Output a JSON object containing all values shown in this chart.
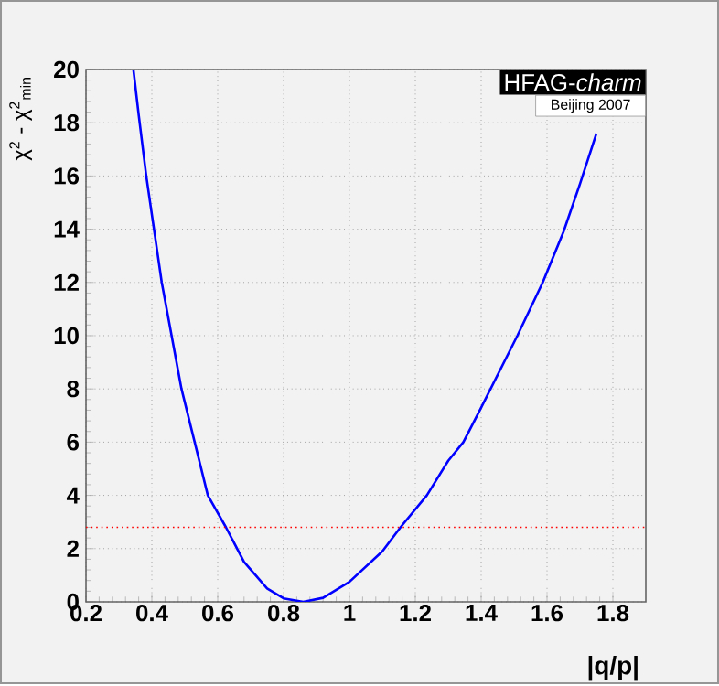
{
  "chart_data": {
    "type": "line",
    "xlabel": "|q/p|",
    "ylabel": "χ$^{2}$ - χ$^{2}$$_{min}$",
    "annotations": [
      "HFAG-*charm*",
      "Beijing 2007"
    ],
    "xlim": [
      0.2,
      1.9
    ],
    "ylim": [
      0,
      20
    ],
    "xticks": [
      0.2,
      0.4,
      0.6,
      0.8,
      1,
      1.2,
      1.4,
      1.6,
      1.8
    ],
    "yticks": [
      0,
      2,
      4,
      6,
      8,
      10,
      12,
      14,
      16,
      18,
      20
    ],
    "grid": true,
    "marker": "none",
    "line_style": "solid",
    "x": [
      0.344,
      0.36,
      0.383,
      0.43,
      0.49,
      0.53,
      0.57,
      0.625,
      0.68,
      0.75,
      0.8,
      0.86,
      0.92,
      1.0,
      1.1,
      1.155,
      1.235,
      1.3,
      1.346,
      1.4,
      1.51,
      1.587,
      1.65,
      1.7,
      1.75
    ],
    "series": [
      {
        "color": "#0000ff",
        "values": [
          20,
          18.3,
          16,
          12,
          8,
          6,
          4,
          2.8,
          1.5,
          0.5,
          0.13,
          0,
          0.15,
          0.75,
          1.9,
          2.8,
          4,
          5.3,
          6,
          7.3,
          10,
          12,
          13.9,
          15.7,
          17.6
        ]
      }
    ],
    "ref_lines": [
      {
        "axis": "y",
        "value": 2.8,
        "color": "#ff0000",
        "line_style": "dotted"
      }
    ]
  }
}
